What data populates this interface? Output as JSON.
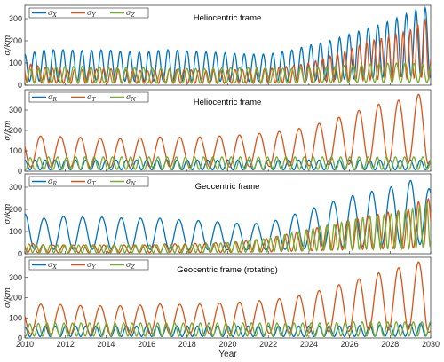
{
  "chart_data": [
    {
      "type": "line",
      "title": "Heliocentric frame",
      "xlim": [
        2010,
        2030
      ],
      "ylim": [
        0,
        360
      ],
      "yticks": [
        0,
        100,
        200,
        300
      ],
      "ylabel": "σ/km",
      "legend": "top-left",
      "series": [
        {
          "name": "σX",
          "color": "#0072BD",
          "points": [
            [
              2010,
              140
            ],
            [
              2011,
              160
            ],
            [
              2012,
              160
            ],
            [
              2013,
              155
            ],
            [
              2014,
              160
            ],
            [
              2015,
              150
            ],
            [
              2016,
              150
            ],
            [
              2017,
              160
            ],
            [
              2018,
              155
            ],
            [
              2019,
              150
            ],
            [
              2020,
              145
            ],
            [
              2021,
              140
            ],
            [
              2022,
              140
            ],
            [
              2023,
              155
            ],
            [
              2024,
              180
            ],
            [
              2025,
              200
            ],
            [
              2026,
              230
            ],
            [
              2027,
              260
            ],
            [
              2028,
              290
            ],
            [
              2029,
              330
            ],
            [
              2029.7,
              355
            ],
            [
              2030,
              300
            ]
          ]
        },
        {
          "name": "σY",
          "color": "#D95319",
          "points": [
            [
              2010,
              100
            ],
            [
              2011,
              80
            ],
            [
              2012,
              70
            ],
            [
              2013,
              70
            ],
            [
              2014,
              75
            ],
            [
              2015,
              70
            ],
            [
              2016,
              65
            ],
            [
              2017,
              70
            ],
            [
              2018,
              70
            ],
            [
              2019,
              65
            ],
            [
              2020,
              70
            ],
            [
              2021,
              70
            ],
            [
              2022,
              75
            ],
            [
              2023,
              85
            ],
            [
              2024,
              100
            ],
            [
              2025,
              130
            ],
            [
              2026,
              160
            ],
            [
              2027,
              200
            ],
            [
              2028,
              220
            ],
            [
              2029,
              250
            ],
            [
              2029.8,
              300
            ],
            [
              2030,
              200
            ]
          ]
        },
        {
          "name": "σZ",
          "color": "#77AC30",
          "points": [
            [
              2010,
              70
            ],
            [
              2011,
              80
            ],
            [
              2012,
              85
            ],
            [
              2013,
              85
            ],
            [
              2014,
              80
            ],
            [
              2015,
              80
            ],
            [
              2016,
              80
            ],
            [
              2017,
              75
            ],
            [
              2018,
              75
            ],
            [
              2019,
              75
            ],
            [
              2020,
              80
            ],
            [
              2021,
              80
            ],
            [
              2022,
              80
            ],
            [
              2023,
              75
            ],
            [
              2024,
              80
            ],
            [
              2025,
              85
            ],
            [
              2026,
              90
            ],
            [
              2027,
              95
            ],
            [
              2028,
              100
            ],
            [
              2029,
              100
            ],
            [
              2030,
              90
            ]
          ]
        }
      ]
    },
    {
      "type": "line",
      "title": "Heliocentric frame",
      "xlim": [
        2010,
        2030
      ],
      "ylim": [
        0,
        400
      ],
      "yticks": [
        0,
        100,
        200,
        300
      ],
      "ylabel": "σ/km",
      "legend": "top-left",
      "series": [
        {
          "name": "σR",
          "color": "#0072BD",
          "points": [
            [
              2010,
              55
            ],
            [
              2011,
              55
            ],
            [
              2012,
              55
            ],
            [
              2013,
              55
            ],
            [
              2014,
              55
            ],
            [
              2015,
              55
            ],
            [
              2016,
              55
            ],
            [
              2017,
              55
            ],
            [
              2018,
              55
            ],
            [
              2019,
              55
            ],
            [
              2020,
              55
            ],
            [
              2021,
              55
            ],
            [
              2022,
              55
            ],
            [
              2023,
              55
            ],
            [
              2024,
              55
            ],
            [
              2025,
              55
            ],
            [
              2026,
              55
            ],
            [
              2027,
              55
            ],
            [
              2028,
              55
            ],
            [
              2029,
              55
            ],
            [
              2030,
              55
            ]
          ]
        },
        {
          "name": "σT",
          "color": "#D95319",
          "points": [
            [
              2010,
              180
            ],
            [
              2011,
              170
            ],
            [
              2012,
              170
            ],
            [
              2013,
              165
            ],
            [
              2014,
              160
            ],
            [
              2015,
              160
            ],
            [
              2016,
              165
            ],
            [
              2017,
              170
            ],
            [
              2018,
              165
            ],
            [
              2019,
              170
            ],
            [
              2020,
              175
            ],
            [
              2021,
              180
            ],
            [
              2022,
              190
            ],
            [
              2023,
              200
            ],
            [
              2024,
              220
            ],
            [
              2025,
              250
            ],
            [
              2026,
              280
            ],
            [
              2027,
              320
            ],
            [
              2028,
              340
            ],
            [
              2029,
              360
            ],
            [
              2029.7,
              390
            ],
            [
              2030,
              200
            ]
          ]
        },
        {
          "name": "σN",
          "color": "#77AC30",
          "points": [
            [
              2010,
              65
            ],
            [
              2011,
              70
            ],
            [
              2012,
              70
            ],
            [
              2013,
              70
            ],
            [
              2014,
              70
            ],
            [
              2015,
              70
            ],
            [
              2016,
              70
            ],
            [
              2017,
              70
            ],
            [
              2018,
              70
            ],
            [
              2019,
              70
            ],
            [
              2020,
              70
            ],
            [
              2021,
              70
            ],
            [
              2022,
              70
            ],
            [
              2023,
              70
            ],
            [
              2024,
              70
            ],
            [
              2025,
              70
            ],
            [
              2026,
              70
            ],
            [
              2027,
              70
            ],
            [
              2028,
              70
            ],
            [
              2029,
              70
            ],
            [
              2030,
              70
            ]
          ]
        }
      ]
    },
    {
      "type": "line",
      "title": "Geocentric frame",
      "xlim": [
        2010,
        2030
      ],
      "ylim": [
        0,
        360
      ],
      "yticks": [
        0,
        100,
        200,
        300
      ],
      "ylabel": "σ/km",
      "legend": "top-left",
      "series": [
        {
          "name": "σR",
          "color": "#0072BD",
          "points": [
            [
              2010,
              180
            ],
            [
              2011,
              160
            ],
            [
              2012,
              170
            ],
            [
              2013,
              165
            ],
            [
              2014,
              165
            ],
            [
              2015,
              160
            ],
            [
              2016,
              160
            ],
            [
              2017,
              160
            ],
            [
              2018,
              150
            ],
            [
              2019,
              150
            ],
            [
              2020,
              140
            ],
            [
              2021,
              135
            ],
            [
              2022,
              140
            ],
            [
              2023,
              170
            ],
            [
              2024,
              200
            ],
            [
              2025,
              230
            ],
            [
              2026,
              260
            ],
            [
              2027,
              280
            ],
            [
              2028,
              300
            ],
            [
              2029,
              330
            ],
            [
              2029.6,
              360
            ],
            [
              2030,
              280
            ]
          ]
        },
        {
          "name": "σT",
          "color": "#D95319",
          "points": [
            [
              2010,
              50
            ],
            [
              2011,
              40
            ],
            [
              2012,
              40
            ],
            [
              2013,
              40
            ],
            [
              2014,
              40
            ],
            [
              2015,
              40
            ],
            [
              2016,
              40
            ],
            [
              2017,
              45
            ],
            [
              2018,
              45
            ],
            [
              2019,
              50
            ],
            [
              2020,
              50
            ],
            [
              2021,
              60
            ],
            [
              2022,
              70
            ],
            [
              2023,
              90
            ],
            [
              2024,
              110
            ],
            [
              2025,
              130
            ],
            [
              2026,
              150
            ],
            [
              2027,
              170
            ],
            [
              2028,
              190
            ],
            [
              2029,
              200
            ],
            [
              2029.8,
              270
            ],
            [
              2030,
              220
            ]
          ]
        },
        {
          "name": "σN",
          "color": "#77AC30",
          "points": [
            [
              2010,
              45
            ],
            [
              2011,
              40
            ],
            [
              2012,
              40
            ],
            [
              2013,
              40
            ],
            [
              2014,
              40
            ],
            [
              2015,
              40
            ],
            [
              2016,
              40
            ],
            [
              2017,
              40
            ],
            [
              2018,
              40
            ],
            [
              2019,
              45
            ],
            [
              2020,
              50
            ],
            [
              2021,
              60
            ],
            [
              2022,
              70
            ],
            [
              2023,
              90
            ],
            [
              2024,
              110
            ],
            [
              2025,
              130
            ],
            [
              2026,
              150
            ],
            [
              2027,
              170
            ],
            [
              2028,
              180
            ],
            [
              2029,
              200
            ],
            [
              2030,
              240
            ]
          ]
        }
      ]
    },
    {
      "type": "line",
      "title": "Geocentric frame (rotating)",
      "xlim": [
        2010,
        2030
      ],
      "ylim": [
        0,
        400
      ],
      "yticks": [
        0,
        100,
        200,
        300
      ],
      "ylabel": "σ/km",
      "legend": "top-left",
      "xlabel": "Year",
      "xticks": [
        2010,
        2012,
        2014,
        2016,
        2018,
        2020,
        2022,
        2024,
        2026,
        2028,
        2030
      ],
      "series": [
        {
          "name": "σX",
          "color": "#0072BD",
          "points": [
            [
              2010,
              55
            ],
            [
              2011,
              60
            ],
            [
              2012,
              60
            ],
            [
              2013,
              60
            ],
            [
              2014,
              60
            ],
            [
              2015,
              60
            ],
            [
              2016,
              60
            ],
            [
              2017,
              60
            ],
            [
              2018,
              60
            ],
            [
              2019,
              60
            ],
            [
              2020,
              60
            ],
            [
              2021,
              60
            ],
            [
              2022,
              60
            ],
            [
              2023,
              60
            ],
            [
              2024,
              60
            ],
            [
              2025,
              60
            ],
            [
              2026,
              60
            ],
            [
              2027,
              65
            ],
            [
              2028,
              65
            ],
            [
              2029,
              70
            ],
            [
              2030,
              75
            ]
          ]
        },
        {
          "name": "σY",
          "color": "#D95319",
          "points": [
            [
              2010,
              160
            ],
            [
              2011,
              170
            ],
            [
              2012,
              165
            ],
            [
              2013,
              160
            ],
            [
              2014,
              160
            ],
            [
              2015,
              160
            ],
            [
              2016,
              165
            ],
            [
              2017,
              170
            ],
            [
              2018,
              165
            ],
            [
              2019,
              170
            ],
            [
              2020,
              175
            ],
            [
              2021,
              180
            ],
            [
              2022,
              190
            ],
            [
              2023,
              200
            ],
            [
              2024,
              220
            ],
            [
              2025,
              250
            ],
            [
              2026,
              280
            ],
            [
              2027,
              310
            ],
            [
              2028,
              340
            ],
            [
              2029,
              360
            ],
            [
              2029.7,
              390
            ],
            [
              2030,
              160
            ]
          ]
        },
        {
          "name": "σZ",
          "color": "#77AC30",
          "points": [
            [
              2010,
              70
            ],
            [
              2011,
              75
            ],
            [
              2012,
              75
            ],
            [
              2013,
              75
            ],
            [
              2014,
              75
            ],
            [
              2015,
              75
            ],
            [
              2016,
              75
            ],
            [
              2017,
              75
            ],
            [
              2018,
              75
            ],
            [
              2019,
              75
            ],
            [
              2020,
              75
            ],
            [
              2021,
              75
            ],
            [
              2022,
              75
            ],
            [
              2023,
              75
            ],
            [
              2024,
              75
            ],
            [
              2025,
              75
            ],
            [
              2026,
              80
            ],
            [
              2027,
              80
            ],
            [
              2028,
              80
            ],
            [
              2029,
              80
            ],
            [
              2030,
              80
            ]
          ]
        }
      ]
    }
  ]
}
